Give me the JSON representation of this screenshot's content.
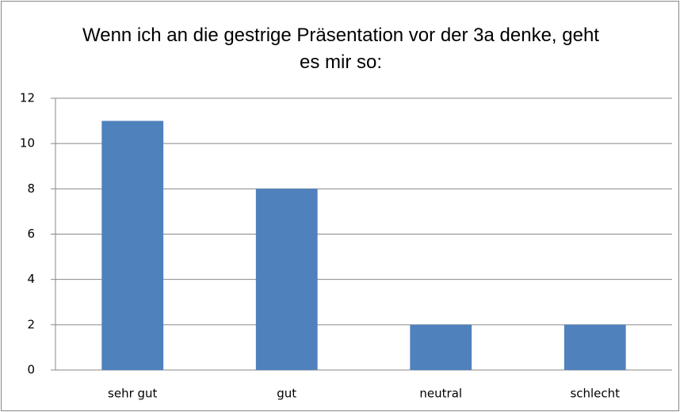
{
  "chart_data": {
    "type": "bar",
    "title": "Wenn ich an die gestrige Präsentation vor der 3a denke, geht es mir so:",
    "categories": [
      "sehr gut",
      "gut",
      "neutral",
      "schlecht"
    ],
    "values": [
      11,
      8,
      2,
      2
    ],
    "color": "#4f81bd",
    "ylim": [
      0,
      12
    ],
    "yticks": [
      0,
      2,
      4,
      6,
      8,
      10,
      12
    ],
    "grid": true
  }
}
